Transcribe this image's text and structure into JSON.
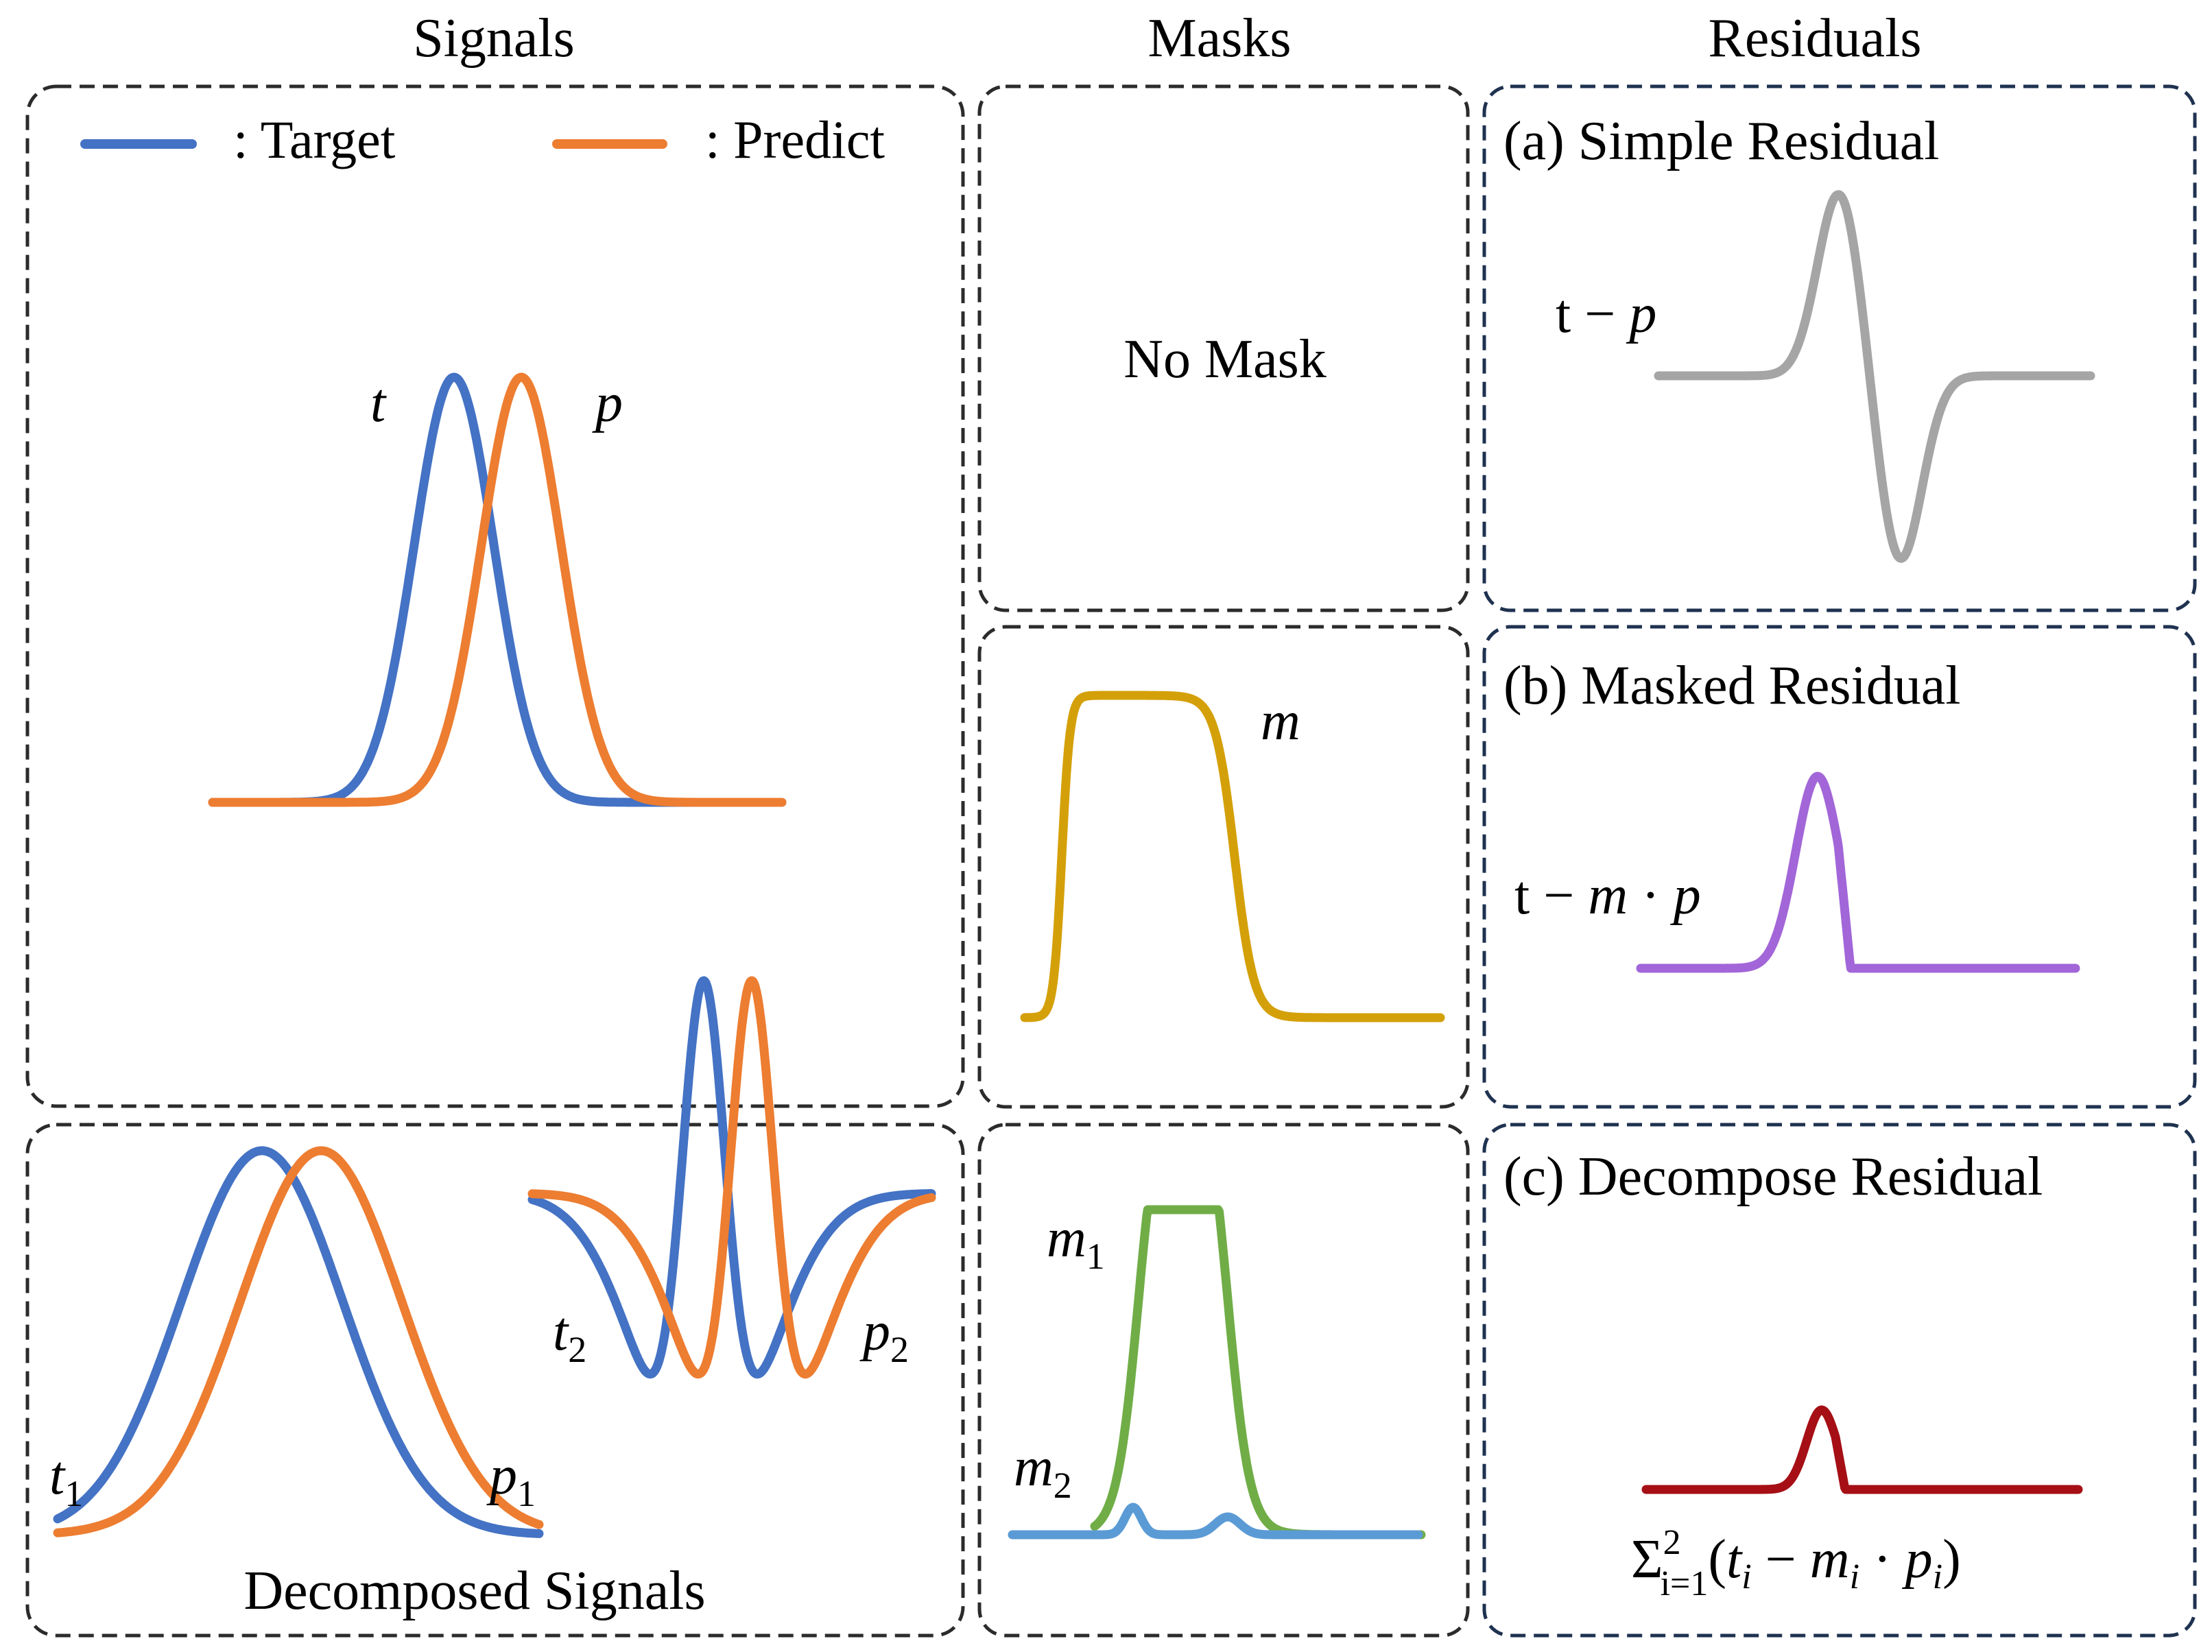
{
  "headers": {
    "signals": "Signals",
    "masks": "Masks",
    "residuals": "Residuals"
  },
  "legend": {
    "target_label": ": Target",
    "predict_label": ": Predict"
  },
  "colors": {
    "target": "#4472C4",
    "predict": "#ED7D31",
    "mask": "#D4A00A",
    "simple_residual": "#A5A5A5",
    "masked_residual": "#A266D8",
    "decompose_residual": "#A50F15",
    "mask1": "#70AD47",
    "mask2": "#5B9BD5"
  },
  "signals_panel": {
    "t_label": "t",
    "p_label": "p"
  },
  "decomposed": {
    "t1_base": "t",
    "t1_sub": "1",
    "p1_base": "p",
    "p1_sub": "1",
    "t2_base": "t",
    "t2_sub": "2",
    "p2_base": "p",
    "p2_sub": "2",
    "caption": "Decomposed Signals"
  },
  "masks": {
    "no_mask": "No Mask",
    "m_label": "m",
    "m1_base": "m",
    "m1_sub": "1",
    "m2_base": "m",
    "m2_sub": "2"
  },
  "residuals": {
    "a_title": "(a) Simple Residual",
    "a_formula_t": "t − ",
    "a_formula_p": "p",
    "b_title": "(b) Masked Residual",
    "b_formula_t": "t − ",
    "b_formula_m": "m",
    "b_formula_dot": " · ",
    "b_formula_p": "p",
    "c_title": "(c) Decompose Residual",
    "c_sigma": "Σ",
    "c_sup": "2",
    "c_sub": "i=1",
    "c_open": "(",
    "c_t": "t",
    "c_i1": "i",
    "c_minus": " − ",
    "c_m": "m",
    "c_i2": "i",
    "c_dot": " · ",
    "c_p": "p",
    "c_i3": "i",
    "c_close": ")"
  }
}
